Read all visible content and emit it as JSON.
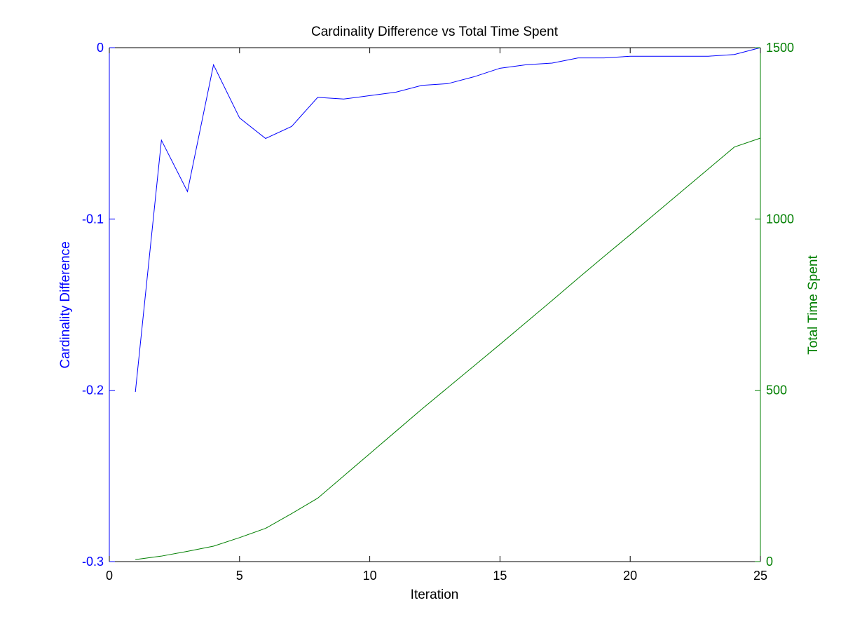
{
  "chart_data": {
    "type": "line",
    "title": "Cardinality Difference vs Total Time Spent",
    "xlabel": "Iteration",
    "ylabel_left": "Cardinality Difference",
    "ylabel_right": "Total Time Spent",
    "xlim": [
      0,
      25
    ],
    "ylim_left": [
      -0.3,
      0
    ],
    "ylim_right": [
      0,
      1500
    ],
    "x_ticks": [
      "0",
      "5",
      "10",
      "15",
      "20",
      "25"
    ],
    "y_left_ticks": [
      "-0.3",
      "-0.2",
      "-0.1",
      "0"
    ],
    "y_right_ticks": [
      "0",
      "500",
      "1000",
      "1500"
    ],
    "grid": false,
    "x": [
      1,
      2,
      3,
      4,
      5,
      6,
      7,
      8,
      9,
      10,
      11,
      12,
      13,
      14,
      15,
      16,
      17,
      18,
      19,
      20,
      21,
      22,
      23,
      24,
      25
    ],
    "series": [
      {
        "axis": "left",
        "color": "#0000ff",
        "values": [
          -0.201,
          -0.054,
          -0.084,
          -0.01,
          -0.041,
          -0.053,
          -0.046,
          -0.029,
          -0.03,
          -0.028,
          -0.026,
          -0.022,
          -0.021,
          -0.017,
          -0.012,
          -0.01,
          -0.009,
          -0.006,
          -0.006,
          -0.005,
          -0.005,
          -0.005,
          -0.005,
          -0.004,
          0.0
        ]
      },
      {
        "axis": "right",
        "color": "#007f00",
        "values": [
          6,
          16,
          30,
          45,
          70,
          97,
          140,
          185,
          250,
          315,
          380,
          445,
          508,
          571,
          634,
          698,
          762,
          827,
          891,
          954,
          1018,
          1082,
          1146,
          1210,
          1236
        ]
      }
    ]
  },
  "colors": {
    "axes": "#000000",
    "left_axis": "#0000ff",
    "right_axis": "#007f00"
  }
}
